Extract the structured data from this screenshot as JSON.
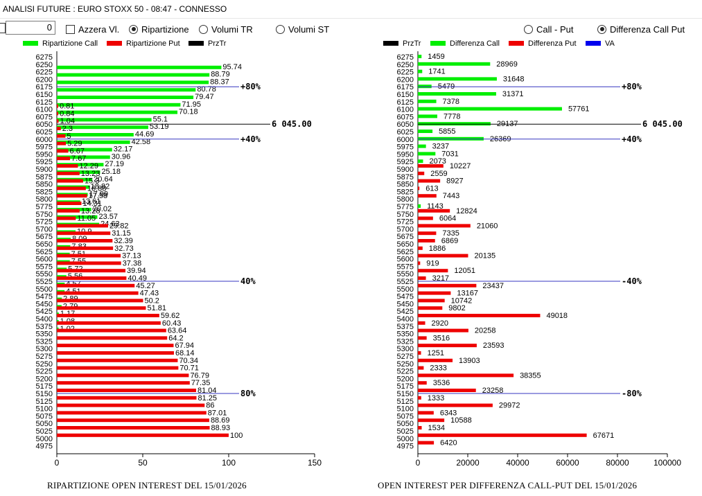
{
  "window": {
    "title": "ANALISI FUTURE : EURO STOXX 50 - 08:47 - CONNESSO"
  },
  "controls": {
    "number_value": "0",
    "azzera_label": "Azzera Vl.",
    "radios_left": [
      {
        "label": "Ripartizione",
        "selected": true
      },
      {
        "label": "Volumi TR",
        "selected": false
      },
      {
        "label": "Volumi ST",
        "selected": false
      }
    ],
    "radios_right": [
      {
        "label": "Call - Put",
        "selected": false
      },
      {
        "label": "Differenza Call Put",
        "selected": true
      }
    ]
  },
  "footers": {
    "left": "RIPARTIZIONE OPEN INTEREST DEL 15/01/2026",
    "right": "OPEN INTEREST PER DIFFERENZA CALL-PUT  DEL 15/01/2026"
  },
  "colors": {
    "call": "#00ee00",
    "put": "#ee0000",
    "prztr": "#000000",
    "va": "#0000ee",
    "ref_line_blue": "#3535c0"
  },
  "chart_data": [
    {
      "type": "bar",
      "orientation": "horizontal",
      "title": "RIPARTIZIONE OPEN INTEREST DEL 15/01/2026",
      "legend": [
        "Ripartizione Call",
        "Ripartizione Put",
        "PrzTr"
      ],
      "legend_placement": "top",
      "xlim": [
        0,
        150
      ],
      "xticks": [
        0,
        50,
        100,
        150
      ],
      "strikes": [
        6275,
        6250,
        6225,
        6200,
        6175,
        6150,
        6125,
        6100,
        6075,
        6050,
        6025,
        6000,
        5975,
        5950,
        5925,
        5900,
        5875,
        5850,
        5825,
        5800,
        5775,
        5750,
        5725,
        5700,
        5675,
        5650,
        5625,
        5600,
        5575,
        5550,
        5525,
        5500,
        5475,
        5450,
        5425,
        5400,
        5375,
        5350,
        5325,
        5300,
        5275,
        5250,
        5225,
        5200,
        5175,
        5150,
        5125,
        5100,
        5075,
        5050,
        5025,
        5000,
        4975
      ],
      "call_strikes": [
        6250,
        6225,
        6200,
        6175,
        6150,
        6125,
        6100,
        6075,
        6050,
        6025,
        6000,
        5975,
        5950,
        5925,
        5900,
        5875,
        5850,
        5825,
        5800,
        5775,
        5750,
        5725,
        5700,
        5675,
        5650,
        5625,
        5600,
        5575,
        5550,
        5525,
        5500,
        5475,
        5450,
        5425,
        5400,
        5375
      ],
      "call_values": [
        95.74,
        88.79,
        88.37,
        80.78,
        79.47,
        71.95,
        70.18,
        55.1,
        53.19,
        44.69,
        42.58,
        32.17,
        30.96,
        27.19,
        25.18,
        20.64,
        18.82,
        17.99,
        13.61,
        20.02,
        23.57,
        24.63,
        10.9,
        8.09,
        7.83,
        7.51,
        7.55,
        5.72,
        5.56,
        4.57,
        4.51,
        2.89,
        2.79,
        1.17,
        1.08,
        1.02
      ],
      "put_strikes": [
        6100,
        6075,
        6050,
        6025,
        6000,
        5975,
        5950,
        5925,
        5900,
        5875,
        5850,
        5825,
        5800,
        5775,
        5750,
        5725,
        5700,
        5675,
        5650,
        5625,
        5600,
        5575,
        5550,
        5525,
        5500,
        5475,
        5450,
        5425,
        5400,
        5375,
        5350,
        5325,
        5300,
        5275,
        5250,
        5225,
        5200,
        5175,
        5150,
        5125,
        5100,
        5075,
        5050,
        5025,
        5000
      ],
      "put_values": [
        0.81,
        0.84,
        1.04,
        2.3,
        5,
        5.29,
        6.67,
        7.67,
        12.29,
        13.23,
        15.3,
        16.88,
        17.58,
        14.31,
        13.28,
        11.05,
        29.82,
        31.15,
        32.39,
        32.73,
        37.13,
        37.38,
        39.94,
        40.49,
        45.27,
        47.43,
        50.2,
        51.81,
        59.62,
        60.43,
        63.64,
        64.2,
        67.94,
        68.14,
        70.34,
        70.71,
        76.79,
        77.35,
        81.04,
        81.25,
        86,
        87.01,
        88.69,
        88.93,
        100
      ],
      "reference_lines": [
        {
          "strike": 6175,
          "label": "+80%",
          "color": "va"
        },
        {
          "strike": 6050,
          "label": "6 045.00",
          "color": "prztr"
        },
        {
          "strike": 6000,
          "label": "+40%",
          "color": "va"
        },
        {
          "strike": 5525,
          "label": "40%",
          "color": "va"
        },
        {
          "strike": 5150,
          "label": "80%",
          "color": "va"
        }
      ]
    },
    {
      "type": "bar",
      "orientation": "horizontal",
      "title": "OPEN INTEREST PER DIFFERENZA CALL-PUT  DEL 15/01/2026",
      "legend": [
        "PrzTr",
        "Differenza Call",
        "Differenza Put",
        "VA"
      ],
      "legend_placement": "top",
      "xlim": [
        0,
        100000
      ],
      "xticks": [
        0,
        20000,
        40000,
        60000,
        80000,
        100000
      ],
      "strikes": [
        6275,
        6250,
        6225,
        6200,
        6175,
        6150,
        6125,
        6100,
        6075,
        6050,
        6025,
        6000,
        5975,
        5950,
        5925,
        5900,
        5875,
        5850,
        5825,
        5800,
        5775,
        5750,
        5725,
        5700,
        5675,
        5650,
        5625,
        5600,
        5575,
        5550,
        5525,
        5500,
        5475,
        5450,
        5425,
        5400,
        5375,
        5350,
        5325,
        5300,
        5275,
        5250,
        5225,
        5200,
        5175,
        5150,
        5125,
        5100,
        5075,
        5050,
        5025,
        5000,
        4975
      ],
      "diff_values": [
        1459,
        28969,
        1741,
        31648,
        5479,
        31371,
        7378,
        57761,
        7778,
        29137,
        5855,
        26369,
        3237,
        7031,
        2073,
        -10227,
        -2559,
        -8927,
        -613,
        -7443,
        1143,
        -12824,
        -6064,
        -21060,
        -7335,
        -6869,
        -1886,
        -20135,
        -919,
        -12051,
        -3217,
        -23437,
        -13167,
        -10742,
        -9802,
        -49018,
        -2920,
        -20258,
        -3516,
        -23593,
        -1251,
        -13903,
        -2333,
        -38355,
        -3536,
        -23258,
        -1333,
        -29972,
        -6343,
        -10588,
        -1534,
        -67671,
        -6420
      ],
      "reference_lines": [
        {
          "strike": 6175,
          "label": "+80%",
          "color": "va"
        },
        {
          "strike": 6050,
          "label": "6 045.00",
          "color": "prztr"
        },
        {
          "strike": 6000,
          "label": "+40%",
          "color": "va"
        },
        {
          "strike": 5525,
          "label": "-40%",
          "color": "va"
        },
        {
          "strike": 5150,
          "label": "-80%",
          "color": "va"
        }
      ]
    }
  ]
}
